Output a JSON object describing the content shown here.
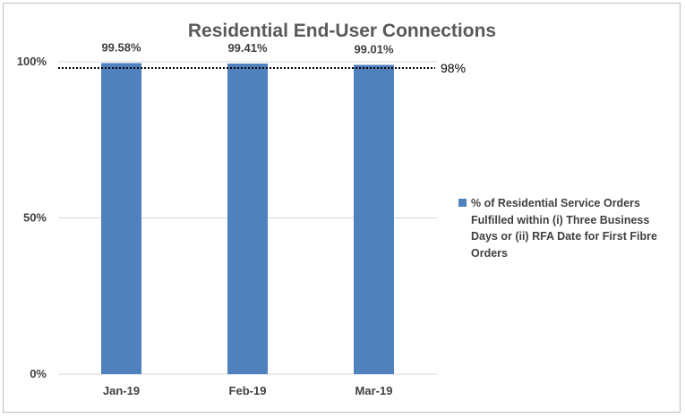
{
  "chart_data": {
    "type": "bar",
    "title": "Residential End-User Connections",
    "categories": [
      "Jan-19",
      "Feb-19",
      "Mar-19"
    ],
    "series": [
      {
        "name": "% of Residential Service Orders Fulfilled within (i) Three Business Days or (ii) RFA Date for First Fibre Orders",
        "values": [
          99.58,
          99.41,
          99.01
        ],
        "data_labels": [
          "99.58%",
          "99.41%",
          "99.01%"
        ],
        "color": "#4f81bd"
      }
    ],
    "yticks": [
      "0%",
      "50%",
      "100%"
    ],
    "ylim": [
      0,
      100
    ],
    "reference_line": {
      "value": 98,
      "label": "98%",
      "style": "dotted"
    },
    "grid": true,
    "legend_position": "right"
  }
}
